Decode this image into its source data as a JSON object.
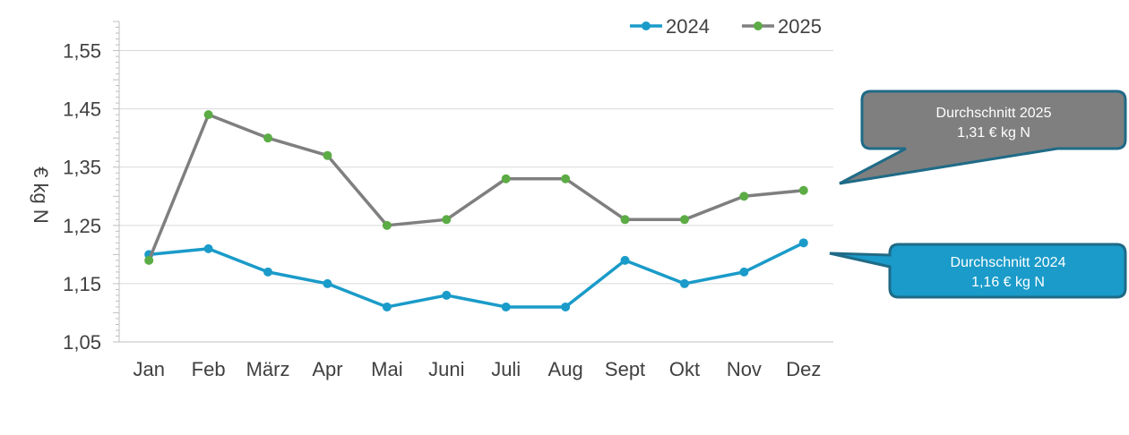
{
  "chart_data": {
    "type": "line",
    "ylabel": "€ kg N",
    "categories": [
      "Jan",
      "Feb",
      "März",
      "Apr",
      "Mai",
      "Juni",
      "Juli",
      "Aug",
      "Sept",
      "Okt",
      "Nov",
      "Dez"
    ],
    "ylim": [
      1.05,
      1.6
    ],
    "yticks": [
      1.05,
      1.15,
      1.25,
      1.35,
      1.45,
      1.55
    ],
    "ytick_labels": [
      "1,05",
      "1,15",
      "1,25",
      "1,35",
      "1,45",
      "1,55"
    ],
    "grid": true,
    "legend_position": "top-right",
    "series": [
      {
        "name": "2024",
        "color": "#1a9bc9",
        "marker_color": "#1a9bc9",
        "values": [
          1.2,
          1.21,
          1.17,
          1.15,
          1.11,
          1.13,
          1.11,
          1.11,
          1.19,
          1.15,
          1.17,
          1.22
        ]
      },
      {
        "name": "2025",
        "color": "#7f7f7f",
        "marker_color": "#5cac45",
        "values": [
          1.19,
          1.44,
          1.4,
          1.37,
          1.25,
          1.26,
          1.33,
          1.33,
          1.26,
          1.26,
          1.3,
          1.31
        ]
      }
    ],
    "annotations": [
      {
        "series": "2025",
        "line1": "Durchschnitt 2025",
        "line2": "1,31 € kg N",
        "fill": "#7f7f7f",
        "border": "#1f6b87"
      },
      {
        "series": "2024",
        "line1": "Durchschnitt 2024",
        "line2": "1,16 € kg N",
        "fill": "#1a9bc9",
        "border": "#1f6b87"
      }
    ]
  }
}
